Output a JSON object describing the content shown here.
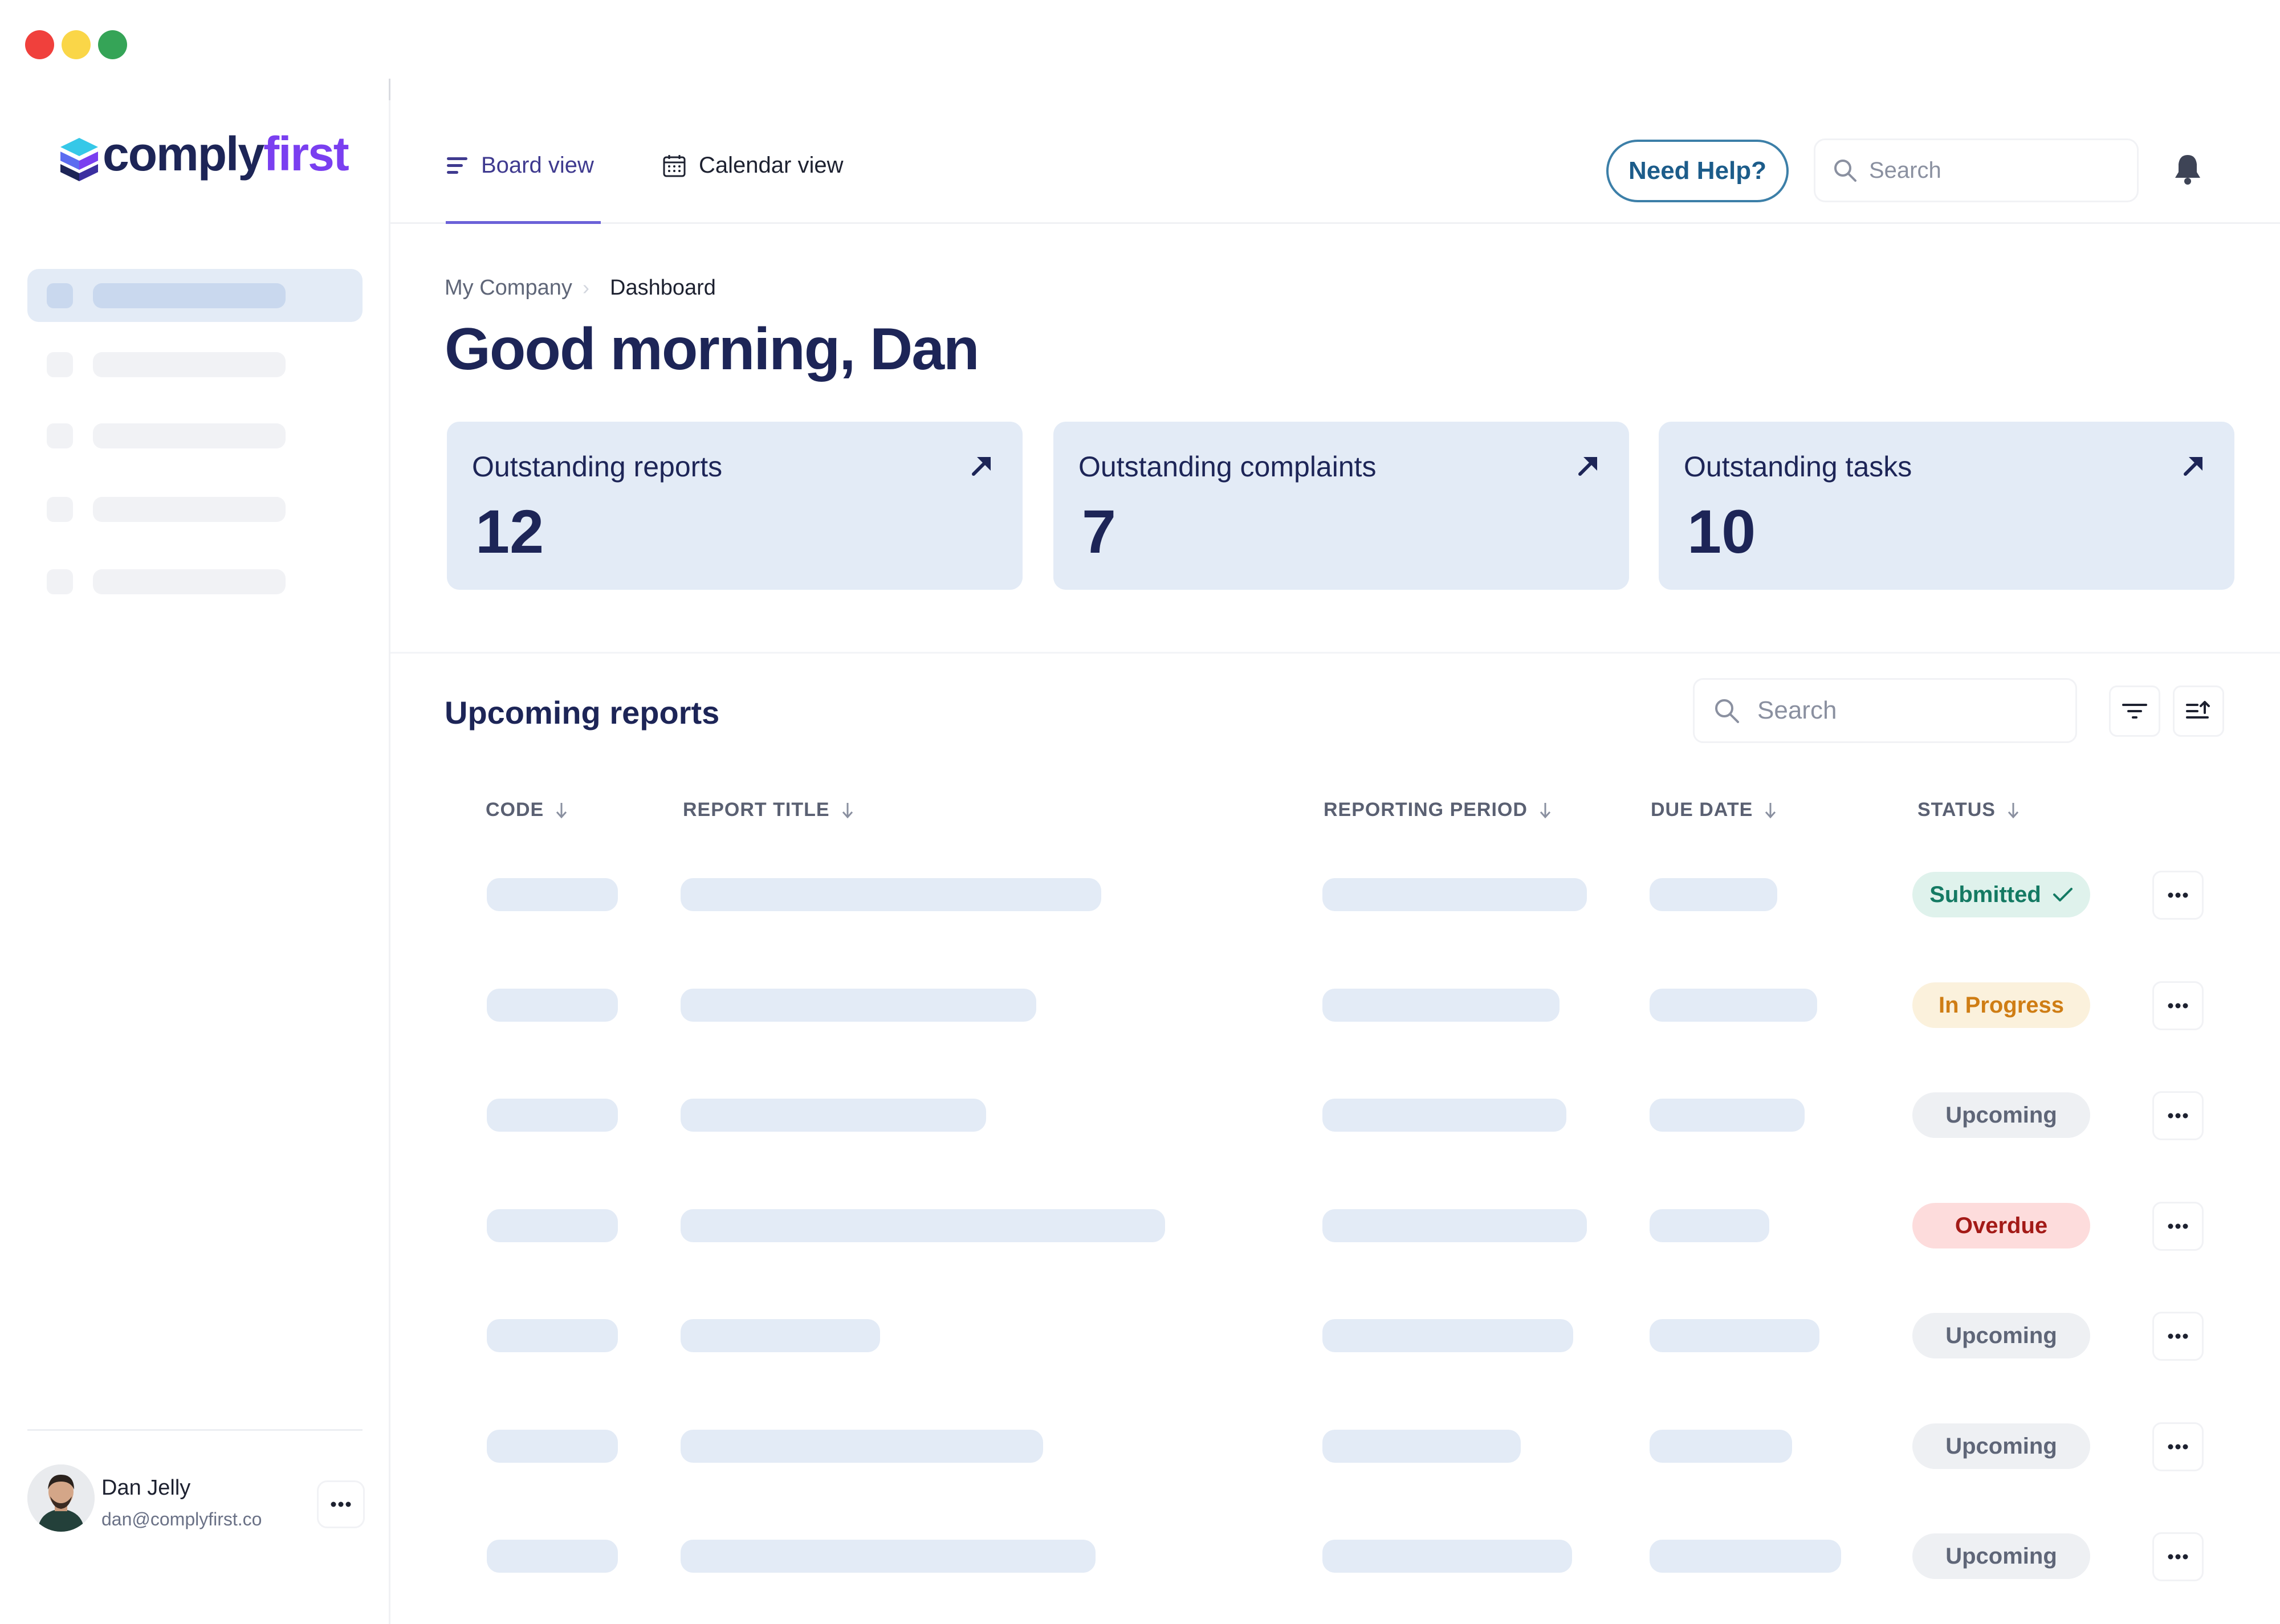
{
  "brand": {
    "logo_main": "comply",
    "logo_accent": "first",
    "colors": {
      "navy": "#1d2557",
      "accent_purple": "#7a3ff0",
      "card_bg": "#e3ebf6"
    }
  },
  "window": {
    "controls": [
      {
        "name": "close-button",
        "color": "#f0403c"
      },
      {
        "name": "minimize-button",
        "color": "#fad648"
      },
      {
        "name": "zoom-button",
        "color": "#35a457"
      }
    ]
  },
  "sidebar": {
    "items_loading": 5,
    "active_index": 0,
    "user": {
      "name": "Dan Jelly",
      "email": "dan@complyfirst.co"
    }
  },
  "header": {
    "tabs": [
      {
        "label": "Board view",
        "icon": "board-icon",
        "active": true
      },
      {
        "label": "Calendar view",
        "icon": "calendar-icon",
        "active": false
      }
    ],
    "help_label": "Need Help?",
    "search_placeholder": "Search"
  },
  "main": {
    "breadcrumb": [
      "My Company",
      "Dashboard"
    ],
    "greeting": "Good morning, Dan",
    "stats": [
      {
        "label_1": "Outstanding",
        "label_2": "reports",
        "value": "12"
      },
      {
        "label_1": "Outstanding",
        "label_2": "complaints",
        "value": "7"
      },
      {
        "label_1": "Outstanding",
        "label_2": "tasks",
        "value": "10"
      }
    ],
    "section_title": "Upcoming reports",
    "table_search_placeholder": "Search",
    "columns": [
      "CODE",
      "REPORT TITLE",
      "REPORTING PERIOD",
      "DUE DATE",
      "STATUS"
    ],
    "rows": [
      {
        "status": "Submitted",
        "status_color": "#147a63",
        "status_bg": "#dff2ec"
      },
      {
        "status": "In Progress",
        "status_color": "#cf7d14",
        "status_bg": "#fbf1dc"
      },
      {
        "status": "Upcoming",
        "status_color": "#5f6678",
        "status_bg": "#eef0f3"
      },
      {
        "status": "Overdue",
        "status_color": "#a31a17",
        "status_bg": "#fddcdc"
      },
      {
        "status": "Upcoming",
        "status_color": "#5f6678",
        "status_bg": "#eef0f3"
      },
      {
        "status": "Upcoming",
        "status_color": "#5f6678",
        "status_bg": "#eef0f3"
      },
      {
        "status": "Upcoming",
        "status_color": "#5f6678",
        "status_bg": "#eef0f3"
      }
    ]
  }
}
